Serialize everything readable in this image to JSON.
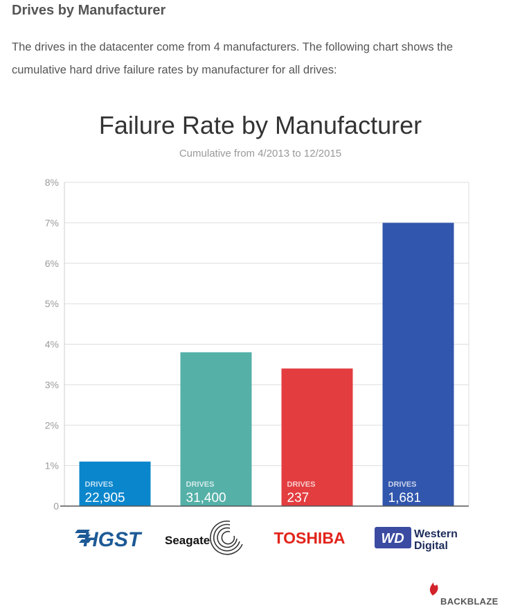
{
  "article": {
    "heading": "Drives by Manufacturer",
    "intro": "The drives in the datacenter come from 4 manufacturers. The following chart shows the cumulative hard drive failure rates by manufacturer for all drives:"
  },
  "chart_data": {
    "type": "bar",
    "title": "Failure Rate by Manufacturer",
    "subtitle": "Cumulative from 4/2013 to 12/2015",
    "xlabel": "",
    "ylabel": "",
    "ylim": [
      0,
      8
    ],
    "y_ticks": [
      "0",
      "1%",
      "2%",
      "3%",
      "4%",
      "5%",
      "6%",
      "7%",
      "8%"
    ],
    "grid": true,
    "categories": [
      "HGST",
      "Seagate",
      "TOSHIBA",
      "Western Digital"
    ],
    "values": [
      1.1,
      3.8,
      3.4,
      7.0
    ],
    "value_unit": "%",
    "bar_colors": [
      "#0a86cc",
      "#55b0a8",
      "#e33d40",
      "#3156ad"
    ],
    "drives_caption": "DRIVES",
    "drive_counts": [
      "22,905",
      "31,400",
      "237",
      "1,681"
    ]
  },
  "logos": {
    "hgst": "HGST",
    "seagate": "Seagate",
    "toshiba": "TOSHIBA",
    "wd_mark": "WD",
    "wd_line1": "Western",
    "wd_line2": "Digital"
  },
  "footer": {
    "brand": "BACKBLAZE"
  },
  "colors": {
    "hgst_blue": "#1d5a96",
    "toshiba_red": "#e2231a",
    "wd_navy": "#1d2b5a",
    "backblaze_red": "#d2232a"
  }
}
